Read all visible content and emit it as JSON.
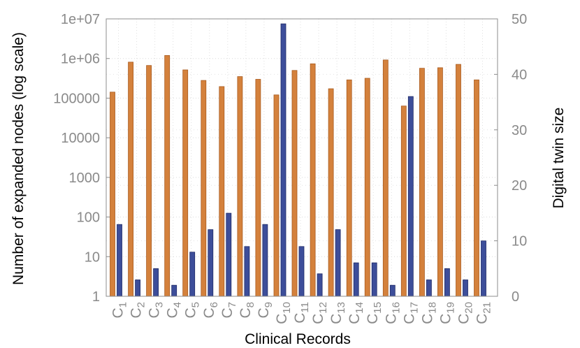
{
  "chart_data": {
    "type": "bar",
    "xlabel": "Clinical Records",
    "ylabel_left": "Number of expanded nodes (log scale)",
    "ylabel_right": "Digital twin size",
    "left_axis": {
      "scale": "log",
      "ylim": [
        1,
        10000000
      ],
      "ticks": [
        "1",
        "10",
        "100",
        "1000",
        "10000",
        "100000",
        "1e+06",
        "1e+07"
      ]
    },
    "right_axis": {
      "scale": "linear",
      "ylim": [
        0,
        50
      ],
      "ticks": [
        "0",
        "10",
        "20",
        "30",
        "40",
        "50"
      ]
    },
    "grid": true,
    "categories": [
      "C1",
      "C2",
      "C3",
      "C4",
      "C5",
      "C6",
      "C7",
      "C8",
      "C9",
      "C10",
      "C11",
      "C12",
      "C13",
      "C14",
      "C15",
      "C16",
      "C17",
      "C18",
      "C19",
      "C20",
      "C21"
    ],
    "category_base": "C",
    "category_subscripts": [
      "1",
      "2",
      "3",
      "4",
      "5",
      "6",
      "7",
      "8",
      "9",
      "10",
      "11",
      "12",
      "13",
      "14",
      "15",
      "16",
      "17",
      "18",
      "19",
      "20",
      "21"
    ],
    "series": [
      {
        "axis": "right",
        "color": "#d4813c",
        "values": [
          36.8,
          42.2,
          41.6,
          43.4,
          40.8,
          38.9,
          37.8,
          39.6,
          39.1,
          36.3,
          40.7,
          41.9,
          37.4,
          39.0,
          39.3,
          42.6,
          34.3,
          41.1,
          41.2,
          41.8,
          39.0
        ]
      },
      {
        "axis": "left",
        "color": "#3d4e9a",
        "values": [
          65,
          2.6,
          5,
          1.9,
          13,
          48,
          125,
          18,
          65,
          7500000,
          18,
          3.7,
          48,
          7,
          7,
          1.9,
          110000,
          2.6,
          5,
          2.6,
          25
        ]
      }
    ]
  }
}
